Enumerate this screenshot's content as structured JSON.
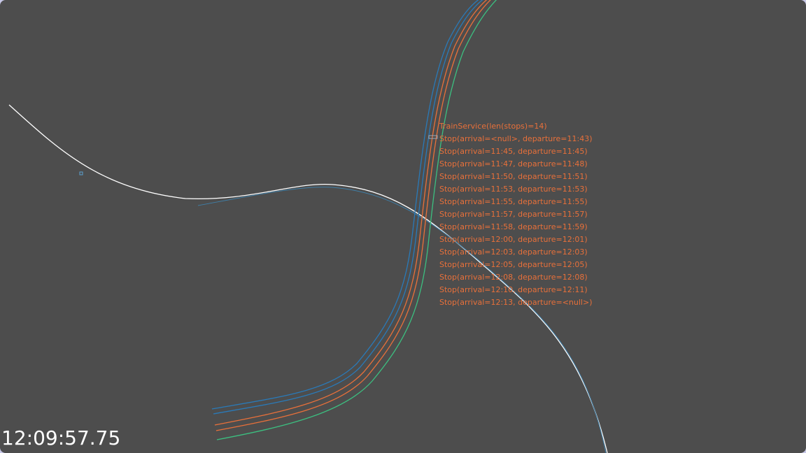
{
  "service": {
    "title": "TrainService(len(stops)=14)",
    "stops": [
      "Stop(arrival=<null>, departure=11:43)",
      "Stop(arrival=11:45, departure=11:45)",
      "Stop(arrival=11:47, departure=11:48)",
      "Stop(arrival=11:50, departure=11:51)",
      "Stop(arrival=11:53, departure=11:53)",
      "Stop(arrival=11:55, departure=11:55)",
      "Stop(arrival=11:57, departure=11:57)",
      "Stop(arrival=11:58, departure=11:59)",
      "Stop(arrival=12:00, departure=12:01)",
      "Stop(arrival=12:03, departure=12:03)",
      "Stop(arrival=12:05, departure=12:05)",
      "Stop(arrival=12:08, departure=12:08)",
      "Stop(arrival=12:10, departure=12:11)",
      "Stop(arrival=12:13, departure=<null>)"
    ]
  },
  "clock": "12:09:57.75"
}
